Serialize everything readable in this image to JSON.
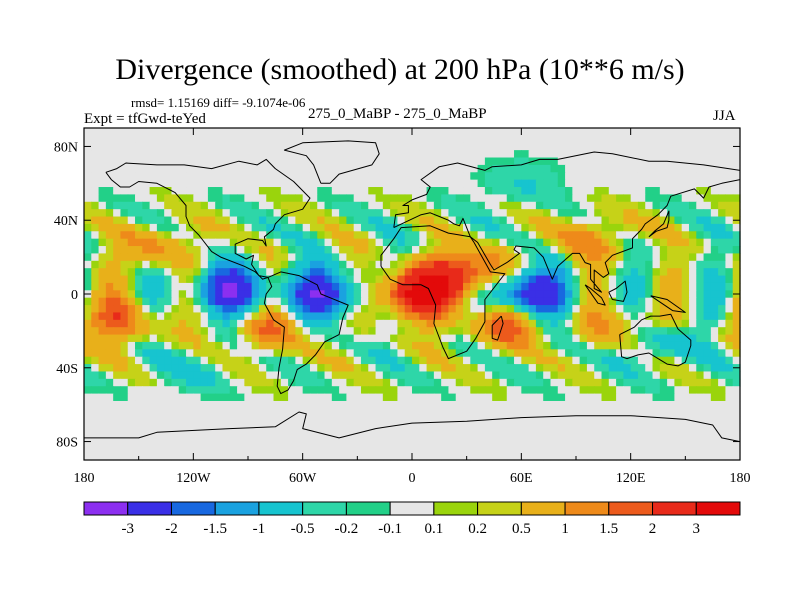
{
  "header": {
    "title": "Divergence (smoothed) at 200 hPa (10**6 m/s)",
    "stats": "rmsd= 1.15169 diff= -9.1074e-06",
    "experiment": "Expt = tfGwd-teYed",
    "cases": "275_0_MaBP - 275_0_MaBP",
    "season": "JJA"
  },
  "chart_data": {
    "type": "heatmap",
    "title": "Divergence (smoothed) at 200 hPa (10**6 m/s)",
    "projection": "cylindrical equidistant",
    "x_range": [
      -180,
      180
    ],
    "y_range": [
      -90,
      90
    ],
    "x_ticks": [
      {
        "value": -180,
        "label": "180"
      },
      {
        "value": -120,
        "label": "120W"
      },
      {
        "value": -60,
        "label": "60W"
      },
      {
        "value": 0,
        "label": "0"
      },
      {
        "value": 60,
        "label": "60E"
      },
      {
        "value": 120,
        "label": "120E"
      },
      {
        "value": 180,
        "label": "180"
      }
    ],
    "y_ticks": [
      {
        "value": 80,
        "label": "80N"
      },
      {
        "value": 40,
        "label": "40N"
      },
      {
        "value": 0,
        "label": "0"
      },
      {
        "value": -40,
        "label": "40S"
      },
      {
        "value": -80,
        "label": "80S"
      }
    ],
    "contour_levels": [
      "-3",
      "-2",
      "-1.5",
      "-1",
      "-0.5",
      "-0.2",
      "-0.1",
      "0.1",
      "0.2",
      "0.5",
      "1",
      "1.5",
      "2",
      "3"
    ],
    "colors": [
      "#8c2ff0",
      "#3a2fe6",
      "#1868e0",
      "#1aa2e0",
      "#17c4cf",
      "#2ed6a8",
      "#22d088",
      "#e6e6e6",
      "#9ad40c",
      "#c6d218",
      "#e8b01a",
      "#ee8a1a",
      "#ec5a1c",
      "#e82a1a",
      "#e30a0a"
    ],
    "field_features": [
      {
        "lon": 0,
        "lat": 0,
        "value": 3.2
      },
      {
        "lon": 60,
        "lat": 0,
        "value": -3.2
      },
      {
        "lon": -45,
        "lat": 0,
        "value": -2.6
      },
      {
        "lon": -100,
        "lat": 2,
        "value": -2.4
      },
      {
        "lon": 30,
        "lat": 10,
        "value": 2.6
      },
      {
        "lon": 50,
        "lat": -15,
        "value": 1.8
      },
      {
        "lon": 120,
        "lat": -20,
        "value": 1.6
      },
      {
        "lon": 130,
        "lat": -25,
        "value": -1.5
      },
      {
        "lon": -160,
        "lat": -15,
        "value": 1.5
      },
      {
        "lon": -80,
        "lat": -20,
        "value": 1.2
      },
      {
        "lon": 100,
        "lat": 30,
        "value": 1.0
      },
      {
        "lon": -140,
        "lat": 25,
        "value": 1.0
      },
      {
        "lon": 60,
        "lat": 60,
        "value": -0.5
      },
      {
        "lon": -120,
        "lat": -40,
        "value": -0.5
      }
    ]
  }
}
